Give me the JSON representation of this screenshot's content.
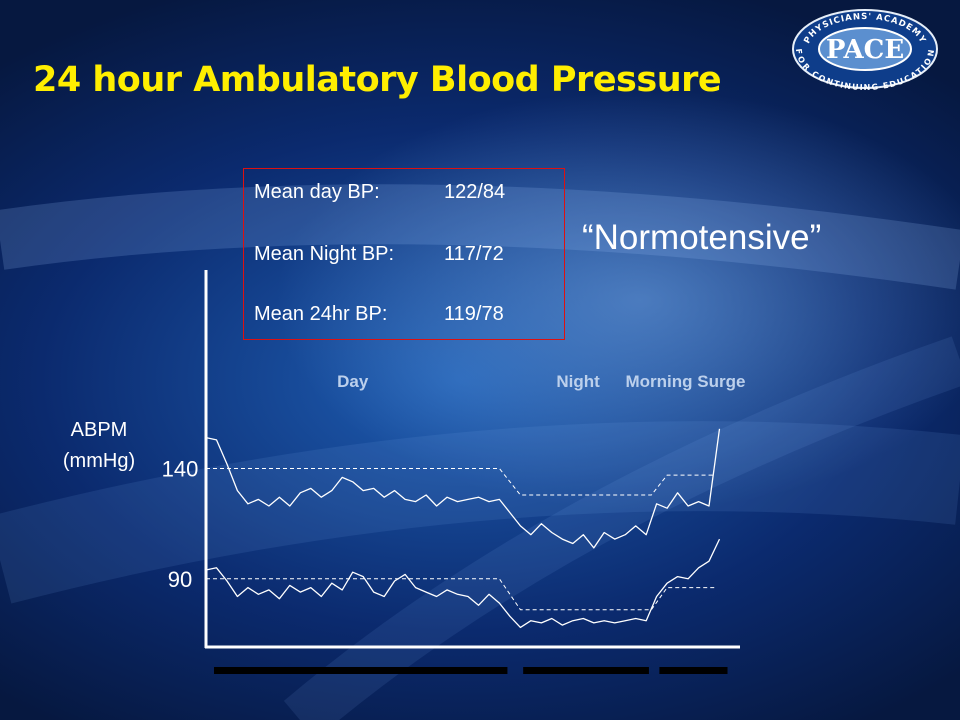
{
  "slide": {
    "title": "24 hour Ambulatory Blood Pressure",
    "logo": {
      "top_text": "PHYSICIANS' ACADEMY",
      "main_text": "PACE",
      "bottom_text": "FOR CONTINUING EDUCATION"
    },
    "mean_box": {
      "rows": [
        {
          "label": "Mean day BP:",
          "value": "122/84"
        },
        {
          "label": "Mean Night BP:",
          "value": "117/72"
        },
        {
          "label": "Mean 24hr BP:",
          "value": "119/78"
        }
      ],
      "border_color": "#dd1111"
    },
    "classification": "“Normotensive”"
  },
  "colors": {
    "title": "#ffee00",
    "background": "#0b2a6e",
    "lines": "#ffffff",
    "period_labels": "#bcd0ec"
  },
  "chart_data": {
    "type": "line",
    "ylabel": "ABPM (mmHg)",
    "y_ticks": [
      {
        "label": "140",
        "value": 140
      },
      {
        "label": "90",
        "value": 90
      }
    ],
    "ylim": [
      60,
      230
    ],
    "xlim": [
      0,
      100
    ],
    "periods": [
      {
        "label": "Day",
        "x_start": 0,
        "x_end": 56
      },
      {
        "label": "Night",
        "x_start": 59,
        "x_end": 83
      },
      {
        "label": "Morning Surge",
        "x_start": 85,
        "x_end": 98
      }
    ],
    "series": [
      {
        "x": [
          0,
          2,
          4,
          6,
          8,
          10,
          12,
          14,
          16,
          18,
          20,
          22,
          24,
          26,
          28,
          30,
          32,
          34,
          36,
          38,
          40,
          42,
          44,
          46,
          48,
          50,
          52,
          54,
          56,
          58,
          60,
          62,
          64,
          66,
          68,
          70,
          72,
          74,
          76,
          78,
          80,
          82,
          84,
          86,
          88,
          90,
          92,
          94,
          96,
          98
        ],
        "values": [
          154,
          153,
          142,
          130,
          124,
          126,
          123,
          127,
          123,
          129,
          131,
          127,
          130,
          136,
          134,
          130,
          131,
          127,
          130,
          126,
          125,
          128,
          123,
          127,
          125,
          126,
          127,
          125,
          126,
          120,
          114,
          110,
          115,
          111,
          108,
          106,
          110,
          104,
          111,
          108,
          110,
          114,
          110,
          124,
          122,
          129,
          123,
          125,
          123,
          158
        ]
      },
      {
        "x": [
          0,
          2,
          4,
          6,
          8,
          10,
          12,
          14,
          16,
          18,
          20,
          22,
          24,
          26,
          28,
          30,
          32,
          34,
          36,
          38,
          40,
          42,
          44,
          46,
          48,
          50,
          52,
          54,
          56,
          58,
          60,
          62,
          64,
          66,
          68,
          70,
          72,
          74,
          76,
          78,
          80,
          82,
          84,
          86,
          88,
          90,
          92,
          94,
          96,
          98
        ],
        "values": [
          94,
          95,
          89,
          82,
          86,
          83,
          85,
          81,
          87,
          84,
          86,
          82,
          88,
          85,
          93,
          91,
          84,
          82,
          89,
          92,
          86,
          84,
          82,
          85,
          83,
          82,
          78,
          83,
          79,
          73,
          68,
          71,
          70,
          72,
          69,
          71,
          72,
          70,
          71,
          70,
          71,
          72,
          71,
          82,
          88,
          91,
          90,
          95,
          98,
          108
        ]
      },
      {
        "x": [
          0,
          56,
          60,
          82,
          85,
          88,
          97
        ],
        "values": [
          140,
          140,
          128,
          128,
          128,
          137,
          137
        ]
      },
      {
        "x": [
          0,
          56,
          60,
          82,
          85,
          88,
          97
        ],
        "values": [
          90,
          90,
          76,
          76,
          76,
          86,
          86
        ]
      }
    ]
  }
}
